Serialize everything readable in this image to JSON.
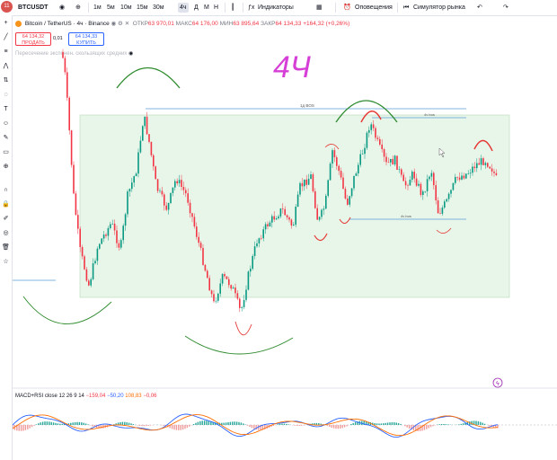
{
  "topbar": {
    "avatar_badge": "11",
    "symbol": "BTCUSDT",
    "timeframes": [
      "1м",
      "5м",
      "10м",
      "15м",
      "30м",
      "4ч",
      "Д",
      "М",
      "Н"
    ],
    "active_timeframe": "4ч",
    "indicators_label": "Индикаторы",
    "alerts_label": "Оповещения",
    "replay_label": "Симулятор рынка"
  },
  "legend": {
    "instrument": "Bitcoin / TetherUS · 4ч · Binance",
    "open_label": "ОТКР",
    "open_value": "63 970,01",
    "high_label": "МАКС",
    "high_value": "64 176,00",
    "low_label": "МИН",
    "low_value": "63 895,64",
    "close_label": "ЗАКР",
    "close_value": "64 134,33",
    "change": "+164,32 (+0,26%)"
  },
  "trade": {
    "sell_price": "64 134,32",
    "sell_label": "ПРОДАТЬ",
    "spread": "0,01",
    "buy_price": "64 134,33",
    "buy_label": "КУПИТЬ"
  },
  "indicator_text": "Пересечение экспонен. скользящих средних",
  "annotations": {
    "handwritten": "4Ч",
    "range_top_label": "1д BOS",
    "bos_label_upper": "4ч bos",
    "bos_label_lower": "4ч bos"
  },
  "macd": {
    "title": "MACD+RSI close 12 26 9 14",
    "v1": "−159,04",
    "v2": "−50,20",
    "v3": "108,83",
    "v4": "−0,06"
  },
  "colors": {
    "up": "#089981",
    "down": "#f23645",
    "range_fill": "#e8f5e9",
    "macd_line": "#2962ff",
    "signal_line": "#ff6d00"
  }
}
